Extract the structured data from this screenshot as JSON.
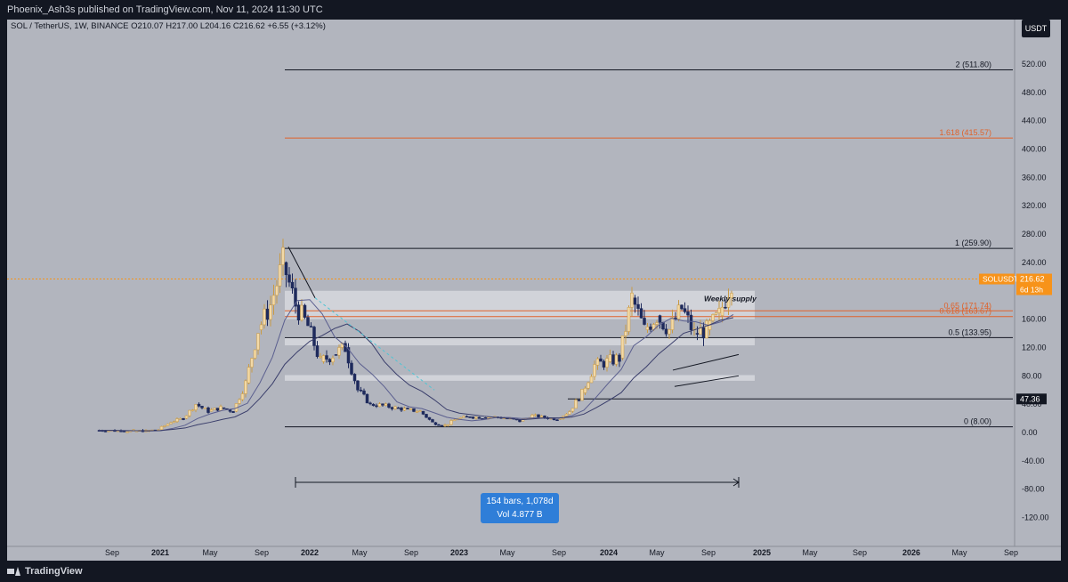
{
  "header": {
    "publisher": "Phoenix_Ash3s published on TradingView.com, Nov 11, 2024 11:30 UTC"
  },
  "symbol": {
    "pair": "SOL / TetherUS, 1W, BINANCE",
    "open": "O210.07",
    "high": "H217.00",
    "low": "L204.16",
    "close": "C216.62",
    "change": "+6.55 (+3.12%)"
  },
  "currency": "USDT",
  "footer": {
    "brand": "TradingView"
  },
  "measure": {
    "line1": "154 bars, 1,078d",
    "line2": "Vol 4.877 B"
  },
  "chart_data": {
    "type": "candlestick",
    "symbol": "SOLUSDT",
    "interval": "1W",
    "x_labels": [
      "Sep",
      "2021",
      "May",
      "Sep",
      "2022",
      "May",
      "Sep",
      "2023",
      "May",
      "Sep",
      "2024",
      "May",
      "Sep",
      "2025",
      "May",
      "Sep",
      "2026",
      "May",
      "Sep"
    ],
    "y_ticks": [
      "520.00",
      "480.00",
      "440.00",
      "400.00",
      "360.00",
      "320.00",
      "280.00",
      "240.00",
      "200.00",
      "160.00",
      "120.00",
      "80.00",
      "40.00",
      "0.00",
      "-40.00",
      "-80.00",
      "-120.00"
    ],
    "ylim": [
      -140,
      560
    ],
    "last_price": 216.62,
    "last_price_label": "216.62",
    "countdown": "6d 13h",
    "price_line_label": "SOLUSDT",
    "horizontal_marker": "47.36",
    "fib_levels": [
      {
        "label": "2 (511.80)",
        "value": 511.8,
        "color": "#131722"
      },
      {
        "label": "1.618 (415.57)",
        "value": 415.57,
        "color": "#e0622a"
      },
      {
        "label": "1 (259.90)",
        "value": 259.9,
        "color": "#131722"
      },
      {
        "label": "0.65 (171.74)",
        "value": 171.74,
        "color": "#e0622a"
      },
      {
        "label": "0.618 (163.67)",
        "value": 163.67,
        "color": "#e0622a"
      },
      {
        "label": "0.5 (133.95)",
        "value": 133.95,
        "color": "#131722"
      },
      {
        "label": "0 (8.00)",
        "value": 8.0,
        "color": "#131722"
      }
    ],
    "annotation": "Weekly supply",
    "zones": [
      [
        160,
        200
      ],
      [
        123,
        135
      ],
      [
        73,
        81
      ]
    ],
    "price_path": [
      [
        "2020-08",
        3
      ],
      [
        "2020-09",
        3
      ],
      [
        "2020-10",
        2
      ],
      [
        "2020-11",
        2
      ],
      [
        "2020-12",
        2
      ],
      [
        "2021-01",
        4
      ],
      [
        "2021-02",
        15
      ],
      [
        "2021-03",
        20
      ],
      [
        "2021-04",
        40
      ],
      [
        "2021-05",
        30
      ],
      [
        "2021-06",
        35
      ],
      [
        "2021-07",
        30
      ],
      [
        "2021-08",
        70
      ],
      [
        "2021-09",
        145
      ],
      [
        "2021-10",
        180
      ],
      [
        "2021-11",
        240
      ],
      [
        "2021-12",
        180
      ],
      [
        "2022-01",
        150
      ],
      [
        "2022-02",
        100
      ],
      [
        "2022-03",
        110
      ],
      [
        "2022-04",
        120
      ],
      [
        "2022-05",
        60
      ],
      [
        "2022-06",
        40
      ],
      [
        "2022-07",
        38
      ],
      [
        "2022-08",
        35
      ],
      [
        "2022-09",
        32
      ],
      [
        "2022-10",
        30
      ],
      [
        "2022-11",
        14
      ],
      [
        "2022-12",
        10
      ],
      [
        "2023-01",
        20
      ],
      [
        "2023-02",
        22
      ],
      [
        "2023-03",
        21
      ],
      [
        "2023-04",
        22
      ],
      [
        "2023-05",
        20
      ],
      [
        "2023-06",
        16
      ],
      [
        "2023-07",
        24
      ],
      [
        "2023-08",
        21
      ],
      [
        "2023-09",
        19
      ],
      [
        "2023-10",
        30
      ],
      [
        "2023-11",
        56
      ],
      [
        "2023-12",
        95
      ],
      [
        "2024-01",
        100
      ],
      [
        "2024-02",
        105
      ],
      [
        "2024-03",
        190
      ],
      [
        "2024-04",
        145
      ],
      [
        "2024-05",
        165
      ],
      [
        "2024-06",
        145
      ],
      [
        "2024-07",
        175
      ],
      [
        "2024-08",
        140
      ],
      [
        "2024-09",
        145
      ],
      [
        "2024-10",
        165
      ],
      [
        "2024-11",
        216
      ]
    ]
  }
}
